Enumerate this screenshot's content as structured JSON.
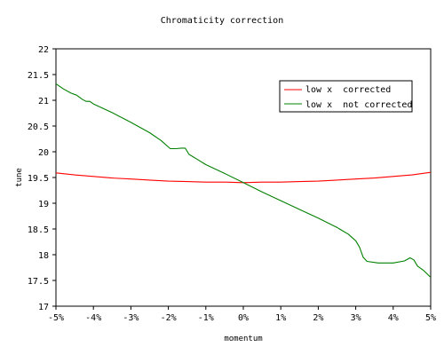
{
  "chart_data": {
    "type": "line",
    "title": "Chromaticity correction",
    "xlabel": "momentum",
    "ylabel": "tune",
    "xlim": [
      -5,
      5
    ],
    "ylim": [
      17,
      22
    ],
    "x_tick_labels": [
      "-5%",
      "-4%",
      "-3%",
      "-2%",
      "-1%",
      "0%",
      "1%",
      "2%",
      "3%",
      "4%",
      "5%"
    ],
    "y_tick_labels": [
      "17",
      "17.5",
      "18",
      "18.5",
      "19",
      "19.5",
      "20",
      "20.5",
      "21",
      "21.5",
      "22"
    ],
    "grid": false,
    "legend_position": "top-right",
    "series": [
      {
        "name": "low x  corrected",
        "color": "#ff0000",
        "points": [
          [
            -5,
            19.59
          ],
          [
            -4.5,
            19.55
          ],
          [
            -4,
            19.52
          ],
          [
            -3.5,
            19.49
          ],
          [
            -3,
            19.47
          ],
          [
            -2.5,
            19.45
          ],
          [
            -2,
            19.43
          ],
          [
            -1.5,
            19.42
          ],
          [
            -1,
            19.41
          ],
          [
            -0.5,
            19.41
          ],
          [
            0,
            19.4
          ],
          [
            0.5,
            19.41
          ],
          [
            1,
            19.41
          ],
          [
            1.5,
            19.42
          ],
          [
            2,
            19.43
          ],
          [
            2.5,
            19.45
          ],
          [
            3,
            19.47
          ],
          [
            3.5,
            19.49
          ],
          [
            4,
            19.52
          ],
          [
            4.5,
            19.55
          ],
          [
            5,
            19.6
          ]
        ]
      },
      {
        "name": "low x  not corrected",
        "color": "#008000",
        "points": [
          [
            -5,
            21.32
          ],
          [
            -4.8,
            21.22
          ],
          [
            -4.6,
            21.14
          ],
          [
            -4.45,
            21.1
          ],
          [
            -4.3,
            21.02
          ],
          [
            -4.2,
            20.98
          ],
          [
            -4.1,
            20.98
          ],
          [
            -4,
            20.93
          ],
          [
            -3.5,
            20.76
          ],
          [
            -3,
            20.57
          ],
          [
            -2.5,
            20.37
          ],
          [
            -2.2,
            20.22
          ],
          [
            -1.95,
            20.06
          ],
          [
            -1.8,
            20.06
          ],
          [
            -1.65,
            20.07
          ],
          [
            -1.55,
            20.07
          ],
          [
            -1.45,
            19.95
          ],
          [
            -1.2,
            19.84
          ],
          [
            -1,
            19.75
          ],
          [
            -0.5,
            19.58
          ],
          [
            0,
            19.4
          ],
          [
            0.5,
            19.22
          ],
          [
            1,
            19.05
          ],
          [
            1.5,
            18.88
          ],
          [
            2,
            18.71
          ],
          [
            2.5,
            18.53
          ],
          [
            2.8,
            18.4
          ],
          [
            3,
            18.27
          ],
          [
            3.1,
            18.15
          ],
          [
            3.2,
            17.95
          ],
          [
            3.3,
            17.87
          ],
          [
            3.6,
            17.84
          ],
          [
            4,
            17.84
          ],
          [
            4.3,
            17.88
          ],
          [
            4.45,
            17.94
          ],
          [
            4.55,
            17.9
          ],
          [
            4.65,
            17.78
          ],
          [
            4.8,
            17.7
          ],
          [
            5,
            17.56
          ]
        ]
      }
    ]
  }
}
